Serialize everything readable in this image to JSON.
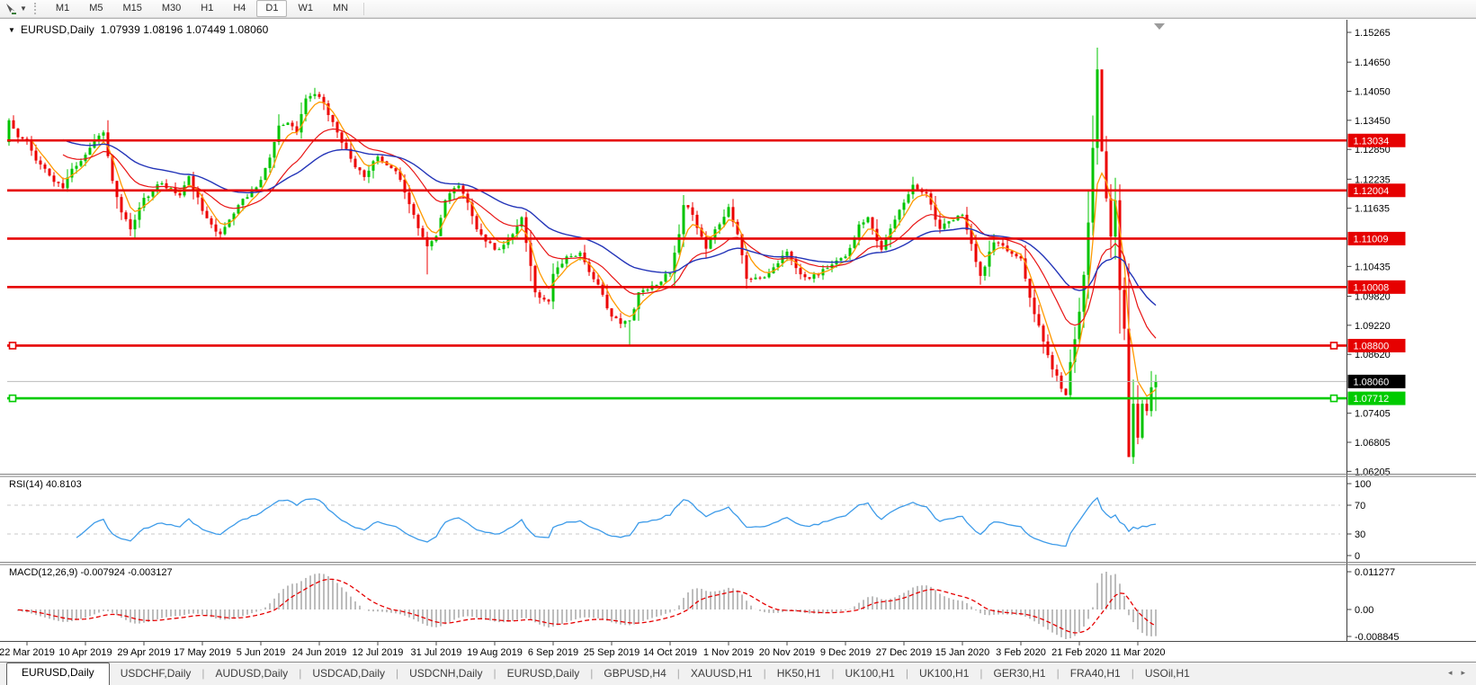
{
  "toolbar": {
    "timeframes": [
      "M1",
      "M5",
      "M15",
      "M30",
      "H1",
      "H4",
      "D1",
      "W1",
      "MN"
    ],
    "active_timeframe": "D1"
  },
  "header": {
    "title": "EURUSD,Daily  1.07939 1.08196 1.07449 1.08060",
    "collapse_icon": "▼"
  },
  "indicators": {
    "rsi_label": "RSI(14) 40.8103",
    "macd_label": "MACD(12,26,9) -0.007924 -0.003127"
  },
  "tabs": {
    "items": [
      "EURUSD,Daily",
      "USDCHF,Daily",
      "AUDUSD,Daily",
      "USDCAD,Daily",
      "USDCNH,Daily",
      "EURUSD,Daily",
      "GBPUSD,H4",
      "XAUUSD,H1",
      "HK50,H1",
      "UK100,H1",
      "UK100,H1",
      "GER30,H1",
      "FRA40,H1",
      "USOil,H1"
    ],
    "active_index": 0,
    "scroll_left_icon": "◂",
    "scroll_right_icon": "▸"
  },
  "chart_data": {
    "type": "candlestick",
    "symbol": "EURUSD",
    "timeframe": "Daily",
    "ohlc_display": {
      "open": "1.07939",
      "high": "1.08196",
      "low": "1.07449",
      "close": "1.08060"
    },
    "n_candles": 256,
    "first_open": 1.13,
    "seed": 11,
    "close_path_anchors": [
      [
        0,
        1.1345
      ],
      [
        2,
        1.131
      ],
      [
        4,
        1.1302
      ],
      [
        6,
        1.1262
      ],
      [
        8,
        1.1245
      ],
      [
        10,
        1.1218
      ],
      [
        12,
        1.1205
      ],
      [
        14,
        1.1245
      ],
      [
        17,
        1.1274
      ],
      [
        19,
        1.1305
      ],
      [
        21,
        1.132
      ],
      [
        23,
        1.122
      ],
      [
        25,
        1.1155
      ],
      [
        27,
        1.112
      ],
      [
        30,
        1.1185
      ],
      [
        32,
        1.12
      ],
      [
        34,
        1.1215
      ],
      [
        38,
        1.119
      ],
      [
        40,
        1.123
      ],
      [
        43,
        1.1158
      ],
      [
        45,
        1.113
      ],
      [
        47,
        1.111
      ],
      [
        49,
        1.114
      ],
      [
        51,
        1.117
      ],
      [
        56,
        1.1222
      ],
      [
        58,
        1.1268
      ],
      [
        60,
        1.1334
      ],
      [
        62,
        1.134
      ],
      [
        64,
        1.132
      ],
      [
        66,
        1.139
      ],
      [
        68,
        1.1399
      ],
      [
        70,
        1.138
      ],
      [
        73,
        1.132
      ],
      [
        75,
        1.1286
      ],
      [
        77,
        1.1248
      ],
      [
        79,
        1.1228
      ],
      [
        82,
        1.127
      ],
      [
        84,
        1.1252
      ],
      [
        86,
        1.124
      ],
      [
        88,
        1.1196
      ],
      [
        90,
        1.115
      ],
      [
        92,
        1.1104
      ],
      [
        93,
        1.1085
      ],
      [
        95,
        1.1106
      ],
      [
        97,
        1.118
      ],
      [
        100,
        1.121
      ],
      [
        102,
        1.1175
      ],
      [
        104,
        1.112
      ],
      [
        106,
        1.1095
      ],
      [
        108,
        1.1078
      ],
      [
        110,
        1.1088
      ],
      [
        112,
        1.111
      ],
      [
        114,
        1.1145
      ],
      [
        117,
        1.099
      ],
      [
        120,
        1.0971
      ],
      [
        121,
        1.1028
      ],
      [
        124,
        1.1064
      ],
      [
        127,
        1.1072
      ],
      [
        130,
        1.1017
      ],
      [
        132,
        1.0985
      ],
      [
        134,
        1.094
      ],
      [
        136,
        1.0925
      ],
      [
        138,
        1.0932
      ],
      [
        140,
        1.099
      ],
      [
        143,
        1.1004
      ],
      [
        147,
        1.1029
      ],
      [
        149,
        1.111
      ],
      [
        150,
        1.117
      ],
      [
        152,
        1.115
      ],
      [
        155,
        1.108
      ],
      [
        157,
        1.112
      ],
      [
        160,
        1.1166
      ],
      [
        162,
        1.111
      ],
      [
        164,
        1.1018
      ],
      [
        168,
        1.1021
      ],
      [
        173,
        1.1074
      ],
      [
        175,
        1.104
      ],
      [
        178,
        1.1018
      ],
      [
        182,
        1.104
      ],
      [
        186,
        1.1064
      ],
      [
        189,
        1.113
      ],
      [
        191,
        1.1145
      ],
      [
        194,
        1.1078
      ],
      [
        197,
        1.114
      ],
      [
        199,
        1.1175
      ],
      [
        201,
        1.1212
      ],
      [
        204,
        1.1194
      ],
      [
        207,
        1.1121
      ],
      [
        212,
        1.115
      ],
      [
        216,
        1.1024
      ],
      [
        219,
        1.1093
      ],
      [
        222,
        1.1075
      ],
      [
        225,
        1.106
      ],
      [
        228,
        1.0945
      ],
      [
        232,
        1.0831
      ],
      [
        235,
        1.0778
      ],
      [
        236,
        1.0846
      ],
      [
        238,
        1.095
      ],
      [
        239,
        1.1026
      ],
      [
        240,
        1.1134
      ],
      [
        241,
        1.1288
      ],
      [
        242,
        1.145
      ],
      [
        243,
        1.1281
      ],
      [
        244,
        1.1184
      ],
      [
        245,
        1.1105
      ],
      [
        246,
        1.118
      ],
      [
        247,
        1.0995
      ],
      [
        248,
        1.0915
      ],
      [
        249,
        1.065
      ],
      [
        250,
        1.076
      ],
      [
        251,
        1.069
      ],
      [
        252,
        1.076
      ],
      [
        253,
        1.0745
      ],
      [
        254,
        1.0794
      ],
      [
        255,
        1.0806
      ]
    ],
    "wick_overrides": {
      "68": {
        "high": 1.1412
      },
      "93": {
        "low": 1.1027
      },
      "138": {
        "low": 1.0879
      },
      "235": {
        "low": 1.0777
      },
      "241": {
        "high": 1.1355
      },
      "242": {
        "high": 1.1495
      },
      "243": {
        "high": 1.1333
      },
      "249": {
        "low": 1.067
      },
      "250": {
        "low": 1.0636
      },
      "255": {
        "high": 1.082,
        "low": 1.0745
      }
    },
    "candle_colors": {
      "up": "#00c400",
      "down": "#ec0000"
    },
    "ma_lines": [
      {
        "period": 5,
        "color": "#ff9a00",
        "width": 1.3
      },
      {
        "period": 18,
        "color": "#e81414",
        "width": 1.2
      },
      {
        "period": 40,
        "color": "#2334b8",
        "width": 1.4
      }
    ],
    "y_ticks": [
      "1.15265",
      "1.14650",
      "1.14050",
      "1.13450",
      "1.12850",
      "1.12235",
      "1.11635",
      "1.10435",
      "1.09820",
      "1.09220",
      "1.08620",
      "1.07405",
      "1.06805",
      "1.06205"
    ],
    "hlines": [
      {
        "price": 1.13034,
        "label": "1.13034",
        "color": "#e60000",
        "handles": false
      },
      {
        "price": 1.12004,
        "label": "1.12004",
        "color": "#e60000",
        "handles": false
      },
      {
        "price": 1.11009,
        "label": "1.11009",
        "color": "#e60000",
        "handles": false
      },
      {
        "price": 1.10008,
        "label": "1.10008",
        "color": "#e60000",
        "handles": false
      },
      {
        "price": 1.088,
        "label": "1.08800",
        "color": "#e60000",
        "handles": true
      },
      {
        "price": 1.07712,
        "label": "1.07712",
        "color": "#00cb00",
        "handles": true
      }
    ],
    "current_price": {
      "value": 1.0806,
      "label": "1.08060",
      "line_color": "#bcbcbc",
      "box_color": "#000000"
    },
    "x_labels": [
      "22 Mar 2019",
      "10 Apr 2019",
      "29 Apr 2019",
      "17 May 2019",
      "5 Jun 2019",
      "24 Jun 2019",
      "12 Jul 2019",
      "31 Jul 2019",
      "19 Aug 2019",
      "6 Sep 2019",
      "25 Sep 2019",
      "14 Oct 2019",
      "1 Nov 2019",
      "20 Nov 2019",
      "9 Dec 2019",
      "27 Dec 2019",
      "15 Jan 2020",
      "3 Feb 2020",
      "21 Feb 2020",
      "11 Mar 2020"
    ],
    "x_label_indices": [
      4,
      17,
      30,
      43,
      56,
      69,
      82,
      95,
      108,
      121,
      134,
      147,
      160,
      173,
      186,
      199,
      212,
      225,
      238,
      251
    ],
    "rsi": {
      "period": 14,
      "value": 40.8103,
      "levels": [
        "100",
        "70",
        "30",
        "0"
      ],
      "line_color": "#3d9be9",
      "dash_color": "#c9c9c9"
    },
    "macd": {
      "fast": 12,
      "slow": 26,
      "signal": 9,
      "main_value": -0.007924,
      "signal_value": -0.003127,
      "scale_ticks": [
        "0.011277",
        "0.00",
        "-0.008845"
      ],
      "hist_color": "#bdbdbd",
      "signal_color": "#e60000"
    },
    "shift_marker_color": "#9b9b9b"
  }
}
